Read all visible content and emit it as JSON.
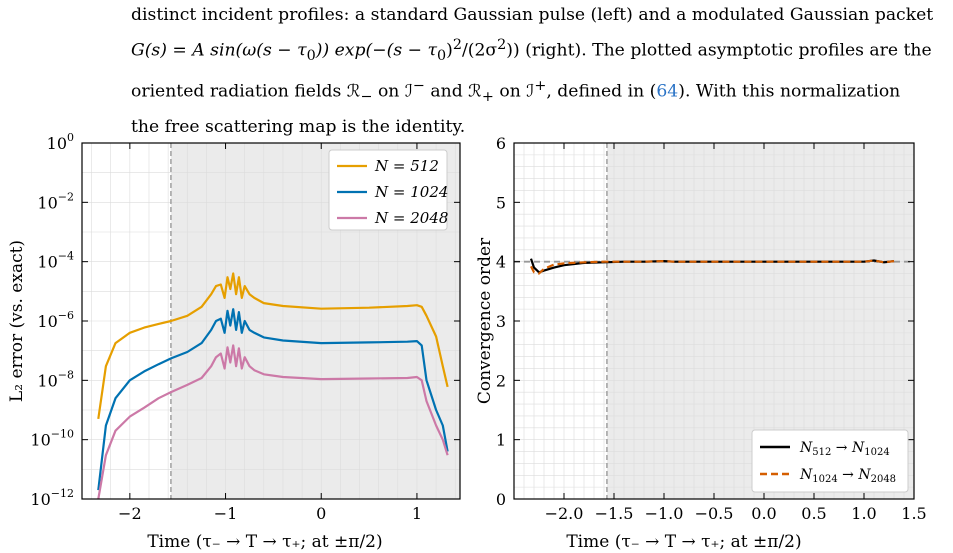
{
  "caption": {
    "line1": "distinct incident profiles: a standard Gaussian pulse (left) and a modulated Gaussian packet",
    "line2a": "G(s) = A sin(ω(s − τ",
    "line2b": "0",
    "line2c": ")) exp(−(s − τ",
    "line2d": "0",
    "line2e": ")",
    "line2f": "2",
    "line2g": "/(2σ",
    "line2h": "2",
    "line2i": ")) (right). The plotted asymptotic profiles are the",
    "line3a": "oriented radiation fields ℛ",
    "line3b": "−",
    "line3c": " on ℐ",
    "line3d": "−",
    "line3e": " and ℛ",
    "line3f": "+",
    "line3g": " on ℐ",
    "line3h": "+",
    "line3i": ", defined in (",
    "line3ref": "64",
    "line3j": "). With this normalization",
    "line4": "the free scattering map is the identity."
  },
  "chart_data": [
    {
      "type": "line",
      "yscale": "log",
      "xlabel": "Time (τ₋ → T → τ₊; at ±π/2)",
      "ylabel": "L₂ error (vs. exact)",
      "xlim": [
        -2.5,
        1.45
      ],
      "ylim": [
        1e-12,
        1
      ],
      "xticks": [
        -2,
        -1,
        0,
        1
      ],
      "xtick_labels": [
        "−2",
        "−1",
        "0",
        "1"
      ],
      "yticks": [
        1e-12,
        1e-10,
        1e-08,
        1e-06,
        0.0001,
        0.01,
        1
      ],
      "ytick_labels": [
        {
          "base": "10",
          "exp": "−12"
        },
        {
          "base": "10",
          "exp": "−10"
        },
        {
          "base": "10",
          "exp": "−8"
        },
        {
          "base": "10",
          "exp": "−6"
        },
        {
          "base": "10",
          "exp": "−4"
        },
        {
          "base": "10",
          "exp": "−2"
        },
        {
          "base": "10",
          "exp": "0"
        }
      ],
      "vline": -1.5708,
      "shaded_from": -1.5708,
      "grid": true,
      "legend_position": "top-right",
      "series": [
        {
          "name": "N = 512",
          "color": "#e69f00",
          "x": [
            -2.33,
            -2.25,
            -2.15,
            -2.0,
            -1.85,
            -1.7,
            -1.57,
            -1.4,
            -1.25,
            -1.15,
            -1.1,
            -1.05,
            -1.01,
            -0.98,
            -0.95,
            -0.92,
            -0.89,
            -0.86,
            -0.83,
            -0.8,
            -0.75,
            -0.7,
            -0.6,
            -0.4,
            0.0,
            0.5,
            0.9,
            1.0,
            1.05,
            1.1,
            1.2,
            1.27,
            1.32
          ],
          "y": [
            5e-10,
            3e-08,
            1.8e-07,
            4e-07,
            6e-07,
            8e-07,
            1e-06,
            1.5e-06,
            3e-06,
            8e-06,
            1.5e-05,
            1.7e-05,
            6e-06,
            3e-05,
            1.2e-05,
            4e-05,
            8e-06,
            3e-05,
            6e-06,
            1.5e-05,
            8e-06,
            6e-06,
            4e-06,
            3.2e-06,
            2.6e-06,
            2.8e-06,
            3.2e-06,
            3.4e-06,
            3e-06,
            1.5e-06,
            3e-07,
            3e-08,
            6e-09
          ]
        },
        {
          "name": "N = 1024",
          "color": "#0072b2",
          "x": [
            -2.33,
            -2.25,
            -2.15,
            -2.0,
            -1.85,
            -1.7,
            -1.57,
            -1.4,
            -1.25,
            -1.15,
            -1.1,
            -1.05,
            -1.01,
            -0.98,
            -0.95,
            -0.92,
            -0.89,
            -0.86,
            -0.83,
            -0.8,
            -0.75,
            -0.7,
            -0.6,
            -0.4,
            0.0,
            0.5,
            0.9,
            1.0,
            1.05,
            1.1,
            1.2,
            1.27,
            1.32
          ],
          "y": [
            2e-12,
            3e-10,
            2.5e-09,
            1e-08,
            2e-08,
            3.5e-08,
            5.5e-08,
            9e-08,
            1.8e-07,
            5e-07,
            1e-06,
            1.2e-06,
            4e-07,
            2.2e-06,
            7e-07,
            2.5e-06,
            5e-07,
            2e-06,
            4e-07,
            1e-06,
            5e-07,
            4e-07,
            2.8e-07,
            2.2e-07,
            1.8e-07,
            1.9e-07,
            2e-07,
            2.1e-07,
            1.5e-07,
            1e-08,
            1e-09,
            3e-10,
            4e-11
          ]
        },
        {
          "name": "N = 2048",
          "color": "#cc79a7",
          "x": [
            -2.33,
            -2.25,
            -2.15,
            -2.0,
            -1.85,
            -1.7,
            -1.57,
            -1.4,
            -1.25,
            -1.15,
            -1.1,
            -1.05,
            -1.01,
            -0.98,
            -0.95,
            -0.92,
            -0.89,
            -0.86,
            -0.83,
            -0.8,
            -0.75,
            -0.7,
            -0.6,
            -0.4,
            0.0,
            0.5,
            0.9,
            1.0,
            1.05,
            1.1,
            1.2,
            1.27,
            1.32
          ],
          "y": [
            1e-12,
            3e-11,
            2e-10,
            6e-10,
            1.2e-09,
            2.5e-09,
            4e-09,
            7e-09,
            1.2e-08,
            3e-08,
            6e-08,
            8e-08,
            2.5e-08,
            1.3e-07,
            4e-08,
            1.5e-07,
            3e-08,
            1.2e-07,
            2.5e-08,
            6e-08,
            3e-08,
            2.2e-08,
            1.6e-08,
            1.3e-08,
            1.1e-08,
            1.15e-08,
            1.2e-08,
            1.3e-08,
            1e-08,
            2e-09,
            3e-10,
            1e-10,
            3e-11
          ]
        }
      ]
    },
    {
      "type": "line",
      "xlabel": "Time (τ₋ → T → τ₊; at ±π/2)",
      "ylabel": "Convergence order",
      "xlim": [
        -2.5,
        1.5
      ],
      "ylim": [
        0,
        6
      ],
      "xticks": [
        -2.0,
        -1.5,
        -1.0,
        -0.5,
        0.0,
        0.5,
        1.0,
        1.5
      ],
      "xtick_labels": [
        "−2.0",
        "−1.5",
        "−1.0",
        "−0.5",
        "0.0",
        "0.5",
        "1.0",
        "1.5"
      ],
      "yticks": [
        0,
        1,
        2,
        3,
        4,
        5,
        6
      ],
      "ytick_labels": [
        "0",
        "1",
        "2",
        "3",
        "4",
        "5",
        "6"
      ],
      "vline": -1.5708,
      "hline": 4,
      "shaded_from": -1.5708,
      "grid": true,
      "legend_position": "bottom-right",
      "series": [
        {
          "name": "N512 → N1024",
          "name_parts": [
            "N",
            "512",
            " → N",
            "1024"
          ],
          "color": "#000000",
          "style": "solid",
          "x": [
            -2.33,
            -2.3,
            -2.25,
            -2.2,
            -2.1,
            -2.0,
            -1.8,
            -1.6,
            -1.4,
            -1.2,
            -1.0,
            -0.9,
            -0.5,
            0.0,
            0.5,
            1.0,
            1.1,
            1.2,
            1.3
          ],
          "y": [
            4.05,
            3.9,
            3.82,
            3.85,
            3.9,
            3.94,
            3.98,
            3.99,
            4.0,
            4.0,
            4.01,
            4.0,
            4.0,
            4.0,
            4.0,
            4.0,
            4.02,
            3.99,
            4.01
          ]
        },
        {
          "name": "N1024 → N2048",
          "name_parts": [
            "N",
            "1024",
            " → N",
            "2048"
          ],
          "color": "#d55e00",
          "style": "dashed",
          "x": [
            -2.33,
            -2.3,
            -2.25,
            -2.2,
            -2.1,
            -2.0,
            -1.8,
            -1.6,
            -1.4,
            -1.2,
            -1.0,
            -0.9,
            -0.5,
            0.0,
            0.5,
            1.0,
            1.1,
            1.2,
            1.3
          ],
          "y": [
            3.92,
            3.82,
            3.8,
            3.88,
            3.95,
            3.97,
            3.99,
            4.0,
            4.0,
            4.0,
            4.01,
            4.0,
            4.0,
            4.0,
            4.0,
            4.0,
            4.02,
            3.99,
            4.01
          ]
        }
      ]
    }
  ]
}
